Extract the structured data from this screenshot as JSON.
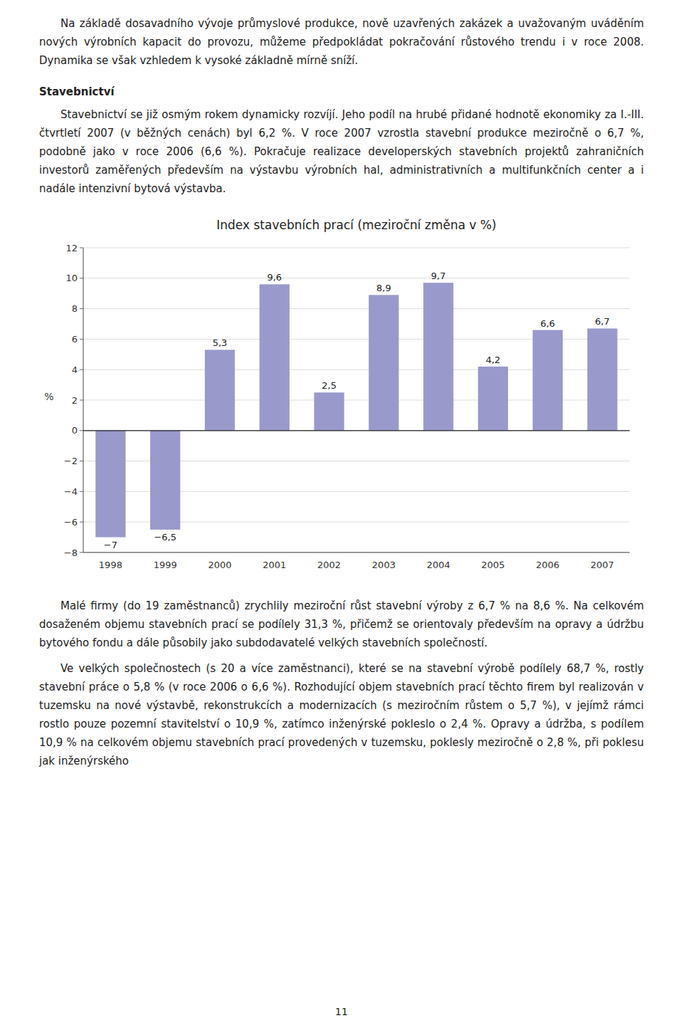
{
  "chart_data": {
    "type": "bar",
    "title": "Index stavebních prací (meziroční změna v %)",
    "ylabel": "%",
    "categories": [
      "1998",
      "1999",
      "2000",
      "2001",
      "2002",
      "2003",
      "2004",
      "2005",
      "2006",
      "2007"
    ],
    "values": [
      -7.0,
      -6.5,
      5.3,
      9.6,
      2.5,
      8.9,
      9.7,
      4.2,
      6.6,
      6.7
    ],
    "value_labels": [
      "−7",
      "−6,5",
      "5,3",
      "9,6",
      "2,5",
      "8,9",
      "9,7",
      "4,2",
      "6,6",
      "6,7"
    ],
    "data_labels": true,
    "color": "#9999cc",
    "ylim": [
      -8,
      12
    ],
    "yticks": [
      {
        "value": -8,
        "label": "−8"
      },
      {
        "value": -6,
        "label": "−6"
      },
      {
        "value": -4,
        "label": "−4"
      },
      {
        "value": -2,
        "label": "−2"
      },
      0,
      2,
      4,
      6,
      8,
      10,
      12
    ],
    "grid": true
  },
  "paragraphs_before": [
    "Na základě dosavadního vývoje průmyslové produkce, nově uzavřených zakázek a uvažovaným uváděním nových výrobních kapacit do provozu, můžeme předpokládat pokračování růstového trendu i v roce 2008. Dynamika se však vzhledem k vysoké základně mírně sníží."
  ],
  "heading": "Stavebnictví",
  "paragraphs_after_heading": [
    "Stavebnictví se již osmým rokem dynamicky rozvíjí. Jeho podíl na hrubé přidané hodnotě ekonomiky za I.-III. čtvrtletí 2007 (v běžných cenách) byl 6,2 %. V roce 2007 vzrostla stavební produkce meziročně o 6,7 %, podobně jako v roce 2006 (6,6 %). Pokračuje realizace developerských stavebních projektů zahraničních investorů zaměřených především na výstavbu výrobních hal, administrativních a multifunkčních center a i nadále intenzivní bytová výstavba."
  ],
  "paragraphs_after_chart": [
    "Malé firmy (do 19 zaměstnanců) zrychlily meziroční růst stavební výroby z 6,7 % na 8,6 %. Na celkovém dosaženém objemu stavebních prací se podílely 31,3 %, přičemž se orientovaly především na opravy a údržbu bytového fondu a dále působily jako subdodavatelé velkých stavebních společností.",
    "Ve velkých společnostech (s 20 a více zaměstnanci), které se na stavební výrobě podílely 68,7 %, rostly stavební práce o 5,8 % (v roce 2006 o 6,6 %). Rozhodující objem stavebních prací těchto firem byl realizován v tuzemsku na nové výstavbě, rekonstrukcích a modernizacích (s meziročním růstem o 5,7 %), v jejímž rámci rostlo pouze pozemní stavitelství o 10,9 %, zatímco inženýrské pokleslo o 2,4 %. Opravy a údržba, s podílem 10,9 % na celkovém objemu stavebních prací provedených v tuzemsku, poklesly meziročně o 2,8 %, při poklesu jak inženýrského"
  ],
  "page_number": "11"
}
